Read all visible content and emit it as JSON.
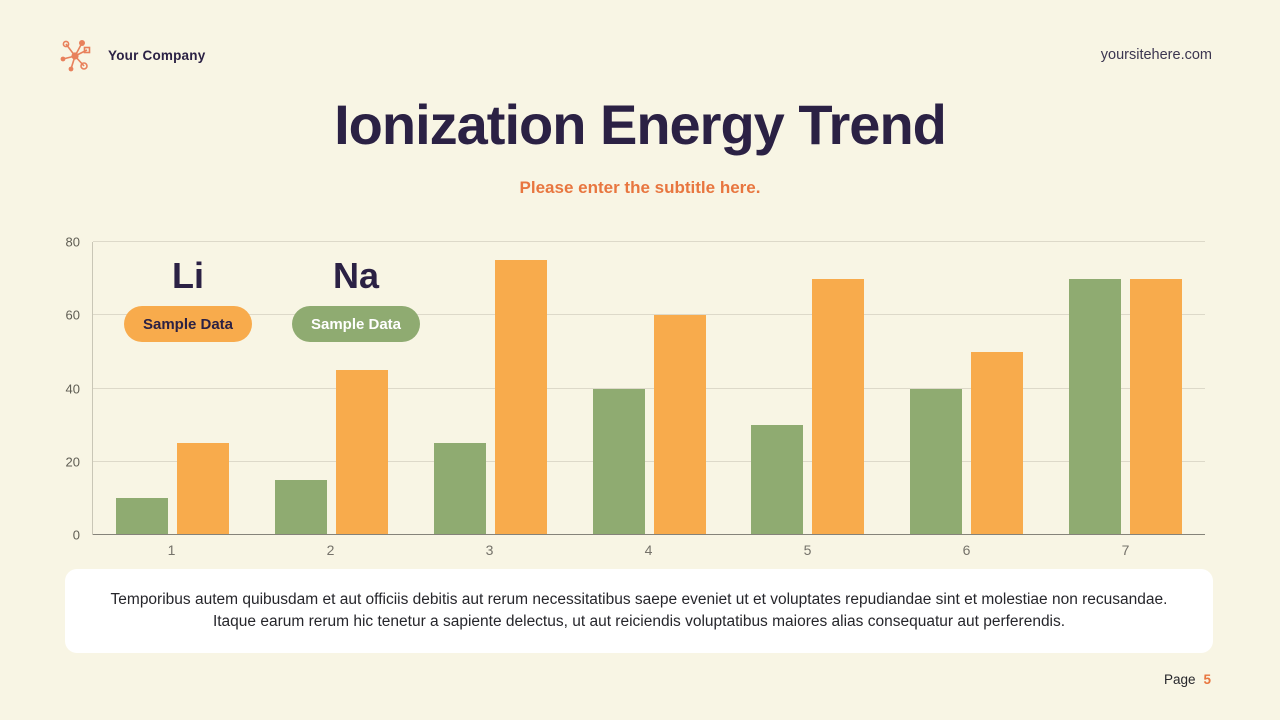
{
  "header": {
    "company": "Your Company",
    "website": "yoursitehere.com"
  },
  "title": "Ionization Energy Trend",
  "subtitle": "Please enter the subtitle here.",
  "chart_data": {
    "type": "bar",
    "title": "Ionization Energy Trend",
    "categories": [
      "1",
      "2",
      "3",
      "4",
      "5",
      "6",
      "7"
    ],
    "series": [
      {
        "name": "Li",
        "badge_label": "Sample Data",
        "color": "#f8ab4c",
        "badge_text_color": "#2b2144",
        "values": [
          25,
          45,
          75,
          60,
          70,
          50,
          70
        ]
      },
      {
        "name": "Na",
        "badge_label": "Sample Data",
        "color": "#8fab71",
        "badge_text_color": "#ffffff",
        "values": [
          10,
          15,
          25,
          40,
          30,
          40,
          70
        ]
      }
    ],
    "bar_display_order_left_to_right": [
      "Na",
      "Li"
    ],
    "xlabel": "",
    "ylabel": "",
    "ylim": [
      0,
      80
    ],
    "yticks": [
      0,
      20,
      40,
      60,
      80
    ],
    "grid": true,
    "legend_position": "top-left-inside"
  },
  "notes_text": "Temporibus autem quibusdam et aut officiis debitis aut rerum necessitatibus saepe eveniet ut et voluptates repudiandae sint et molestiae non recusandae. Itaque earum rerum hic tenetur a sapiente delectus, ut aut reiciendis voluptatibus maiores alias consequatur aut perferendis.",
  "footer": {
    "page_label": "Page",
    "page_number": "5"
  },
  "colors": {
    "background": "#f8f5e4",
    "title_text": "#2b2144",
    "accent_orange": "#e8763f",
    "bar_green": "#8fab71",
    "bar_orange": "#f8ab4c",
    "logo_coral": "#e8815c",
    "notes_background": "#ffffff"
  },
  "icons": {
    "logo": "molecule-network-icon"
  }
}
